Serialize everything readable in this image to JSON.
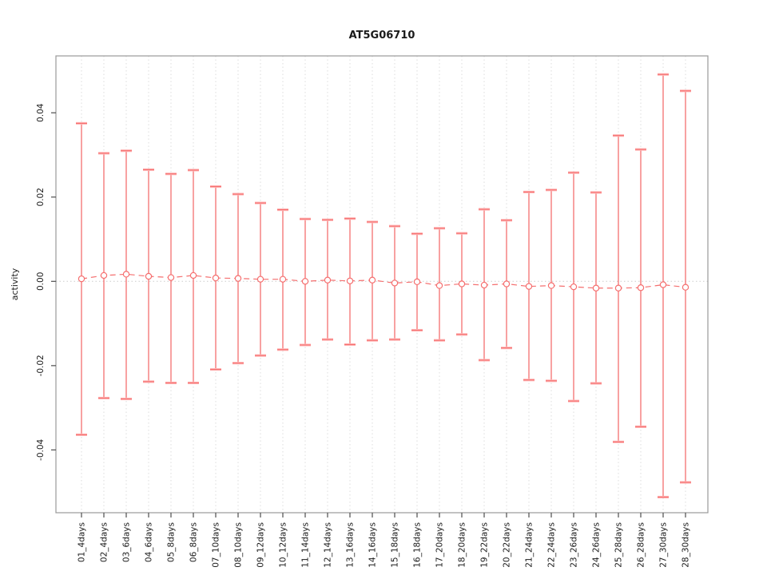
{
  "chart_data": {
    "type": "errorbar",
    "title": "AT5G06710",
    "xlabel": "",
    "ylabel": "activity",
    "ylim": [
      -0.0549,
      0.0535
    ],
    "yticks": [
      -0.04,
      -0.02,
      0.0,
      0.02,
      0.04
    ],
    "ytick_labels": [
      "-0.04",
      "-0.02",
      "0.00",
      "0.02",
      "0.04"
    ],
    "grid": "vertical dotted gridline at every category; dotted horizontal line at y=0; no legend",
    "categories": [
      "01_4days",
      "02_4days",
      "03_6days",
      "04_6days",
      "05_8days",
      "06_8days",
      "07_10days",
      "08_10days",
      "09_12days",
      "10_12days",
      "11_14days",
      "12_14days",
      "13_16days",
      "14_16days",
      "15_18days",
      "16_18days",
      "17_20days",
      "18_20days",
      "19_22days",
      "20_22days",
      "21_24days",
      "22_24days",
      "23_26days",
      "24_26days",
      "25_28days",
      "26_28days",
      "27_30days",
      "28_30days"
    ],
    "series": [
      {
        "name": "activity",
        "center": [
          0.0006,
          0.0014,
          0.0017,
          0.0012,
          0.0009,
          0.0014,
          0.0008,
          0.0007,
          0.0005,
          0.0005,
          0.0,
          0.0003,
          0.0001,
          0.0003,
          -0.0004,
          -0.0001,
          -0.001,
          -0.0006,
          -0.0009,
          -0.0006,
          -0.0012,
          -0.001,
          -0.0013,
          -0.0016,
          -0.0016,
          -0.0015,
          -0.0008,
          -0.0014
        ],
        "upper": [
          0.0375,
          0.0304,
          0.031,
          0.0265,
          0.0255,
          0.0264,
          0.0225,
          0.0207,
          0.0186,
          0.017,
          0.0148,
          0.0146,
          0.0149,
          0.0141,
          0.0131,
          0.0113,
          0.0126,
          0.0114,
          0.0171,
          0.0145,
          0.0212,
          0.0217,
          0.0258,
          0.0211,
          0.0346,
          0.0313,
          0.0491,
          0.0452
        ],
        "lower": [
          -0.0364,
          -0.0277,
          -0.0279,
          -0.0238,
          -0.0241,
          -0.0241,
          -0.0209,
          -0.0194,
          -0.0176,
          -0.0162,
          -0.0151,
          -0.0138,
          -0.015,
          -0.014,
          -0.0138,
          -0.0116,
          -0.014,
          -0.0126,
          -0.0187,
          -0.0158,
          -0.0234,
          -0.0236,
          -0.0284,
          -0.0242,
          -0.0381,
          -0.0345,
          -0.0512,
          -0.0477
        ]
      }
    ],
    "colors": {
      "errorbar": "#f56f6f",
      "errorbar_halo": "#ffb8b8",
      "connector": "#f56f6f",
      "grid": "#dcdcdc",
      "zero_line": "#cccccc",
      "box": "#999999",
      "tick": "#4d4d4d",
      "text": "#1a1a1a"
    }
  }
}
